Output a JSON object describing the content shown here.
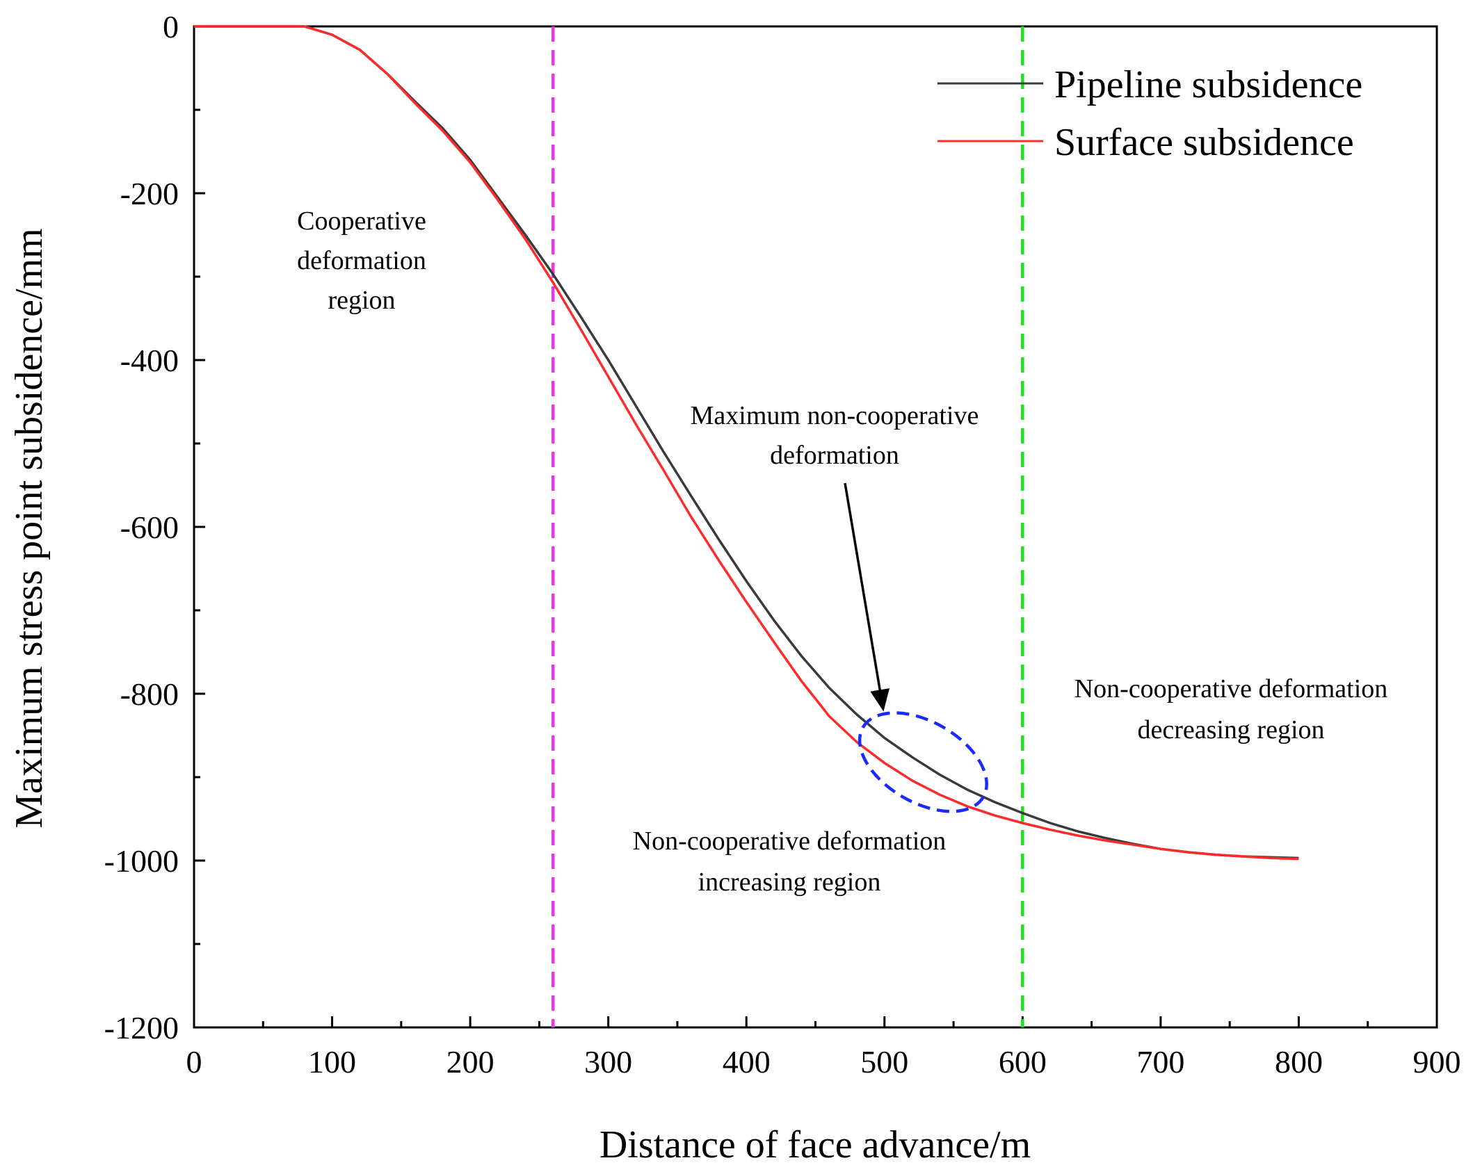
{
  "chart_data": {
    "type": "line",
    "title": "",
    "xlabel": "Distance of face advance/m",
    "ylabel": "Maximum stress point subsidence/mm",
    "xlim": [
      0,
      900
    ],
    "ylim": [
      -1200,
      0
    ],
    "xticks": [
      0,
      100,
      200,
      300,
      400,
      500,
      600,
      700,
      800,
      900
    ],
    "yticks": [
      0,
      -200,
      -400,
      -600,
      -800,
      -1000,
      -1200
    ],
    "grid": false,
    "legend_position": "top-right",
    "series": [
      {
        "name": "Pipeline subsidence",
        "color": "#3a3a3a",
        "x": [
          0,
          20,
          40,
          60,
          80,
          100,
          120,
          140,
          160,
          180,
          200,
          220,
          240,
          260,
          280,
          300,
          320,
          340,
          360,
          380,
          400,
          420,
          440,
          460,
          480,
          500,
          520,
          540,
          560,
          580,
          600,
          620,
          640,
          660,
          680,
          700,
          720,
          740,
          760,
          780,
          800
        ],
        "y": [
          0,
          0,
          0,
          0,
          0,
          -10,
          -28,
          -57,
          -90,
          -122,
          -160,
          -205,
          -250,
          -297,
          -348,
          -400,
          -455,
          -510,
          -563,
          -615,
          -665,
          -712,
          -755,
          -793,
          -825,
          -853,
          -876,
          -897,
          -915,
          -930,
          -943,
          -955,
          -965,
          -973,
          -980,
          -986,
          -990,
          -993,
          -995,
          -996,
          -997
        ]
      },
      {
        "name": "Surface subsidence",
        "color": "#ff2b2b",
        "x": [
          0,
          20,
          40,
          60,
          80,
          100,
          120,
          140,
          160,
          180,
          200,
          220,
          240,
          260,
          280,
          300,
          320,
          340,
          360,
          380,
          400,
          420,
          440,
          460,
          480,
          500,
          520,
          540,
          560,
          580,
          600,
          620,
          640,
          660,
          680,
          700,
          720,
          740,
          760,
          780,
          800
        ],
        "y": [
          0,
          0,
          0,
          0,
          0,
          -10,
          -28,
          -57,
          -92,
          -125,
          -163,
          -208,
          -255,
          -307,
          -363,
          -420,
          -477,
          -532,
          -588,
          -640,
          -690,
          -738,
          -785,
          -827,
          -858,
          -883,
          -904,
          -921,
          -935,
          -946,
          -955,
          -963,
          -970,
          -976,
          -981,
          -986,
          -990,
          -993,
          -995,
          -997,
          -998
        ]
      }
    ],
    "reference_lines": [
      {
        "name": "cooperative-boundary",
        "x": 260,
        "color": "#ee33ee",
        "style": "dashed"
      },
      {
        "name": "decreasing-boundary",
        "x": 600,
        "color": "#22dd22",
        "style": "dashed"
      }
    ],
    "highlight_ellipse": {
      "center_x": 528,
      "center_y": -882,
      "color": "#1a2bff",
      "style": "dashed"
    },
    "annotations": [
      {
        "name": "cooperative-region",
        "lines": [
          "Cooperative",
          "deformation",
          "region"
        ]
      },
      {
        "name": "max-non-cooperative",
        "lines": [
          "Maximum non-cooperative",
          "deformation"
        ],
        "arrow_to": [
          495,
          -820
        ]
      },
      {
        "name": "increasing-region",
        "lines": [
          "Non-cooperative deformation",
          "increasing region"
        ]
      },
      {
        "name": "decreasing-region",
        "lines": [
          "Non-cooperative deformation",
          "decreasing region"
        ]
      }
    ]
  }
}
